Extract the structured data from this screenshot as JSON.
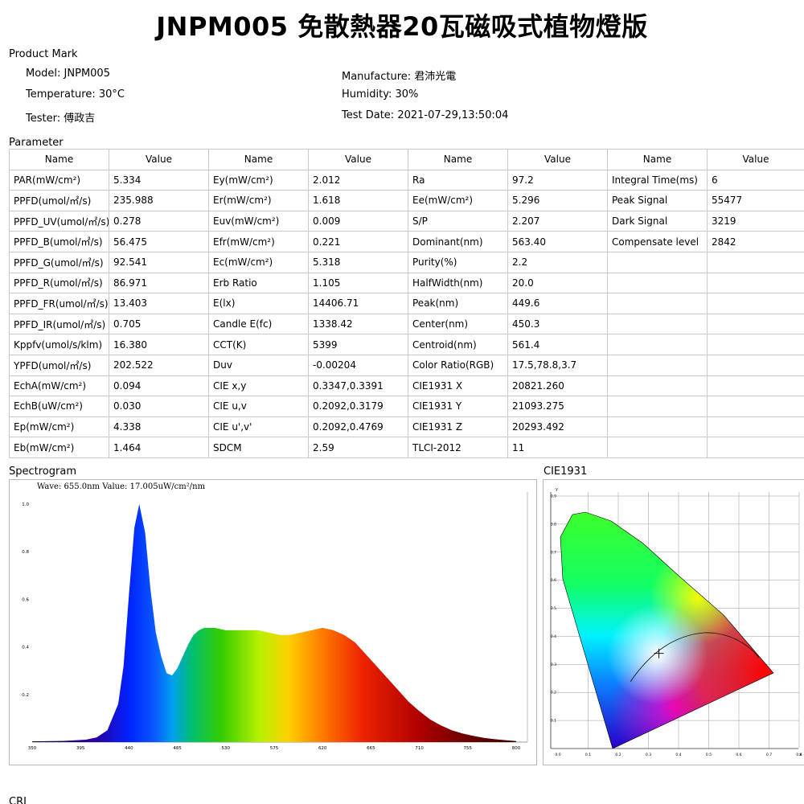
{
  "title": "JNPM005 免散熱器20瓦磁吸式植物燈版",
  "product_mark": {
    "heading": "Product Mark",
    "model": "Model: JNPM005",
    "manufacture": "Manufacture: 君沛光電",
    "temperature": "Temperature: 30°C",
    "humidity": "Humidity: 30%",
    "tester": "Tester: 傅政吉",
    "test_date": "Test Date: 2021-07-29,13:50:04"
  },
  "parameter": {
    "heading": "Parameter",
    "headers": [
      "Name",
      "Value",
      "Name",
      "Value",
      "Name",
      "Value",
      "Name",
      "Value"
    ],
    "rows": [
      [
        "PAR(mW/cm²)",
        "5.334",
        "Ey(mW/cm²)",
        "2.012",
        "Ra",
        "97.2",
        "Integral Time(ms)",
        "6"
      ],
      [
        "PPFD(umol/㎡/s)",
        "235.988",
        "Er(mW/cm²)",
        "1.618",
        "Ee(mW/cm²)",
        "5.296",
        "Peak Signal",
        "55477"
      ],
      [
        "PPFD_UV(umol/㎡/s)",
        "0.278",
        "Euv(mW/cm²)",
        "0.009",
        "S/P",
        "2.207",
        "Dark Signal",
        "3219"
      ],
      [
        "PPFD_B(umol/㎡/s)",
        "56.475",
        "Efr(mW/cm²)",
        "0.221",
        "Dominant(nm)",
        "563.40",
        "Compensate level",
        "2842"
      ],
      [
        "PPFD_G(umol/㎡/s)",
        "92.541",
        "Ec(mW/cm²)",
        "5.318",
        "Purity(%)",
        "2.2",
        "",
        ""
      ],
      [
        "PPFD_R(umol/㎡/s)",
        "86.971",
        "Erb Ratio",
        "1.105",
        "HalfWidth(nm)",
        "20.0",
        "",
        ""
      ],
      [
        "PPFD_FR(umol/㎡/s)",
        "13.403",
        "E(lx)",
        "14406.71",
        "Peak(nm)",
        "449.6",
        "",
        ""
      ],
      [
        "PPFD_IR(umol/㎡/s)",
        "0.705",
        "Candle E(fc)",
        "1338.42",
        "Center(nm)",
        "450.3",
        "",
        ""
      ],
      [
        "Kppfv(umol/s/klm)",
        "16.380",
        "CCT(K)",
        "5399",
        "Centroid(nm)",
        "561.4",
        "",
        ""
      ],
      [
        "YPFD(umol/㎡/s)",
        "202.522",
        "Duv",
        "-0.00204",
        "Color Ratio(RGB)",
        "17.5,78.8,3.7",
        "",
        ""
      ],
      [
        "EchA(mW/cm²)",
        "0.094",
        "CIE x,y",
        "0.3347,0.3391",
        "CIE1931 X",
        "20821.260",
        "",
        ""
      ],
      [
        "EchB(uW/cm²)",
        "0.030",
        "CIE u,v",
        "0.2092,0.3179",
        "CIE1931 Y",
        "21093.275",
        "",
        ""
      ],
      [
        "Ep(mW/cm²)",
        "4.338",
        "CIE u',v'",
        "0.2092,0.4769",
        "CIE1931 Z",
        "20293.492",
        "",
        ""
      ],
      [
        "Eb(mW/cm²)",
        "1.464",
        "SDCM",
        "2.59",
        "TLCI-2012",
        "11",
        "",
        ""
      ]
    ]
  },
  "spectrogram": {
    "heading": "Spectrogram",
    "readout": "Wave: 655.0nm Value: 17.005uW/cm²/nm",
    "x_ticks": [
      "350",
      "395",
      "440",
      "485",
      "530",
      "575",
      "620",
      "665",
      "710",
      "755",
      "800"
    ],
    "y_ticks": [
      "1.0",
      "0.8",
      "0.6",
      "0.4",
      "0.2"
    ]
  },
  "cie1931": {
    "heading": "CIE1931",
    "y_axis_label": "y",
    "x_axis_label": "x",
    "x_ticks": [
      "0.0",
      "0.1",
      "0.2",
      "0.3",
      "0.4",
      "0.5",
      "0.6",
      "0.7",
      "0.8"
    ],
    "y_ticks": [
      "0.9",
      "0.8",
      "0.7",
      "0.6",
      "0.5",
      "0.4",
      "0.3",
      "0.2",
      "0.1"
    ]
  },
  "cri": {
    "heading": "CRI"
  },
  "chart_data": [
    {
      "type": "area",
      "title": "Spectrogram",
      "xlabel": "",
      "ylabel": "",
      "xlim": [
        350,
        800
      ],
      "ylim": [
        0,
        1.0
      ],
      "x": [
        350,
        380,
        400,
        410,
        420,
        430,
        435,
        440,
        445,
        449.6,
        455,
        460,
        465,
        470,
        475,
        480,
        485,
        490,
        495,
        500,
        505,
        510,
        520,
        530,
        540,
        550,
        560,
        570,
        580,
        590,
        600,
        610,
        620,
        630,
        640,
        650,
        660,
        670,
        680,
        690,
        700,
        710,
        720,
        730,
        740,
        750,
        760,
        770,
        780,
        790,
        800
      ],
      "series": [
        {
          "values": [
            0.003,
            0.005,
            0.01,
            0.02,
            0.05,
            0.16,
            0.32,
            0.62,
            0.9,
            1.0,
            0.88,
            0.64,
            0.46,
            0.36,
            0.29,
            0.28,
            0.31,
            0.36,
            0.41,
            0.45,
            0.47,
            0.48,
            0.48,
            0.47,
            0.47,
            0.47,
            0.47,
            0.46,
            0.45,
            0.45,
            0.46,
            0.47,
            0.48,
            0.47,
            0.45,
            0.42,
            0.37,
            0.32,
            0.27,
            0.22,
            0.17,
            0.13,
            0.095,
            0.07,
            0.05,
            0.036,
            0.026,
            0.018,
            0.012,
            0.008,
            0.004
          ]
        }
      ]
    },
    {
      "type": "scatter",
      "title": "CIE1931",
      "xlabel": "x",
      "ylabel": "y",
      "xlim": [
        0,
        0.8
      ],
      "ylim": [
        0,
        0.9
      ],
      "grid": true,
      "series": [
        {
          "x": [
            0.3347
          ],
          "values": [
            0.3391
          ]
        }
      ]
    }
  ]
}
